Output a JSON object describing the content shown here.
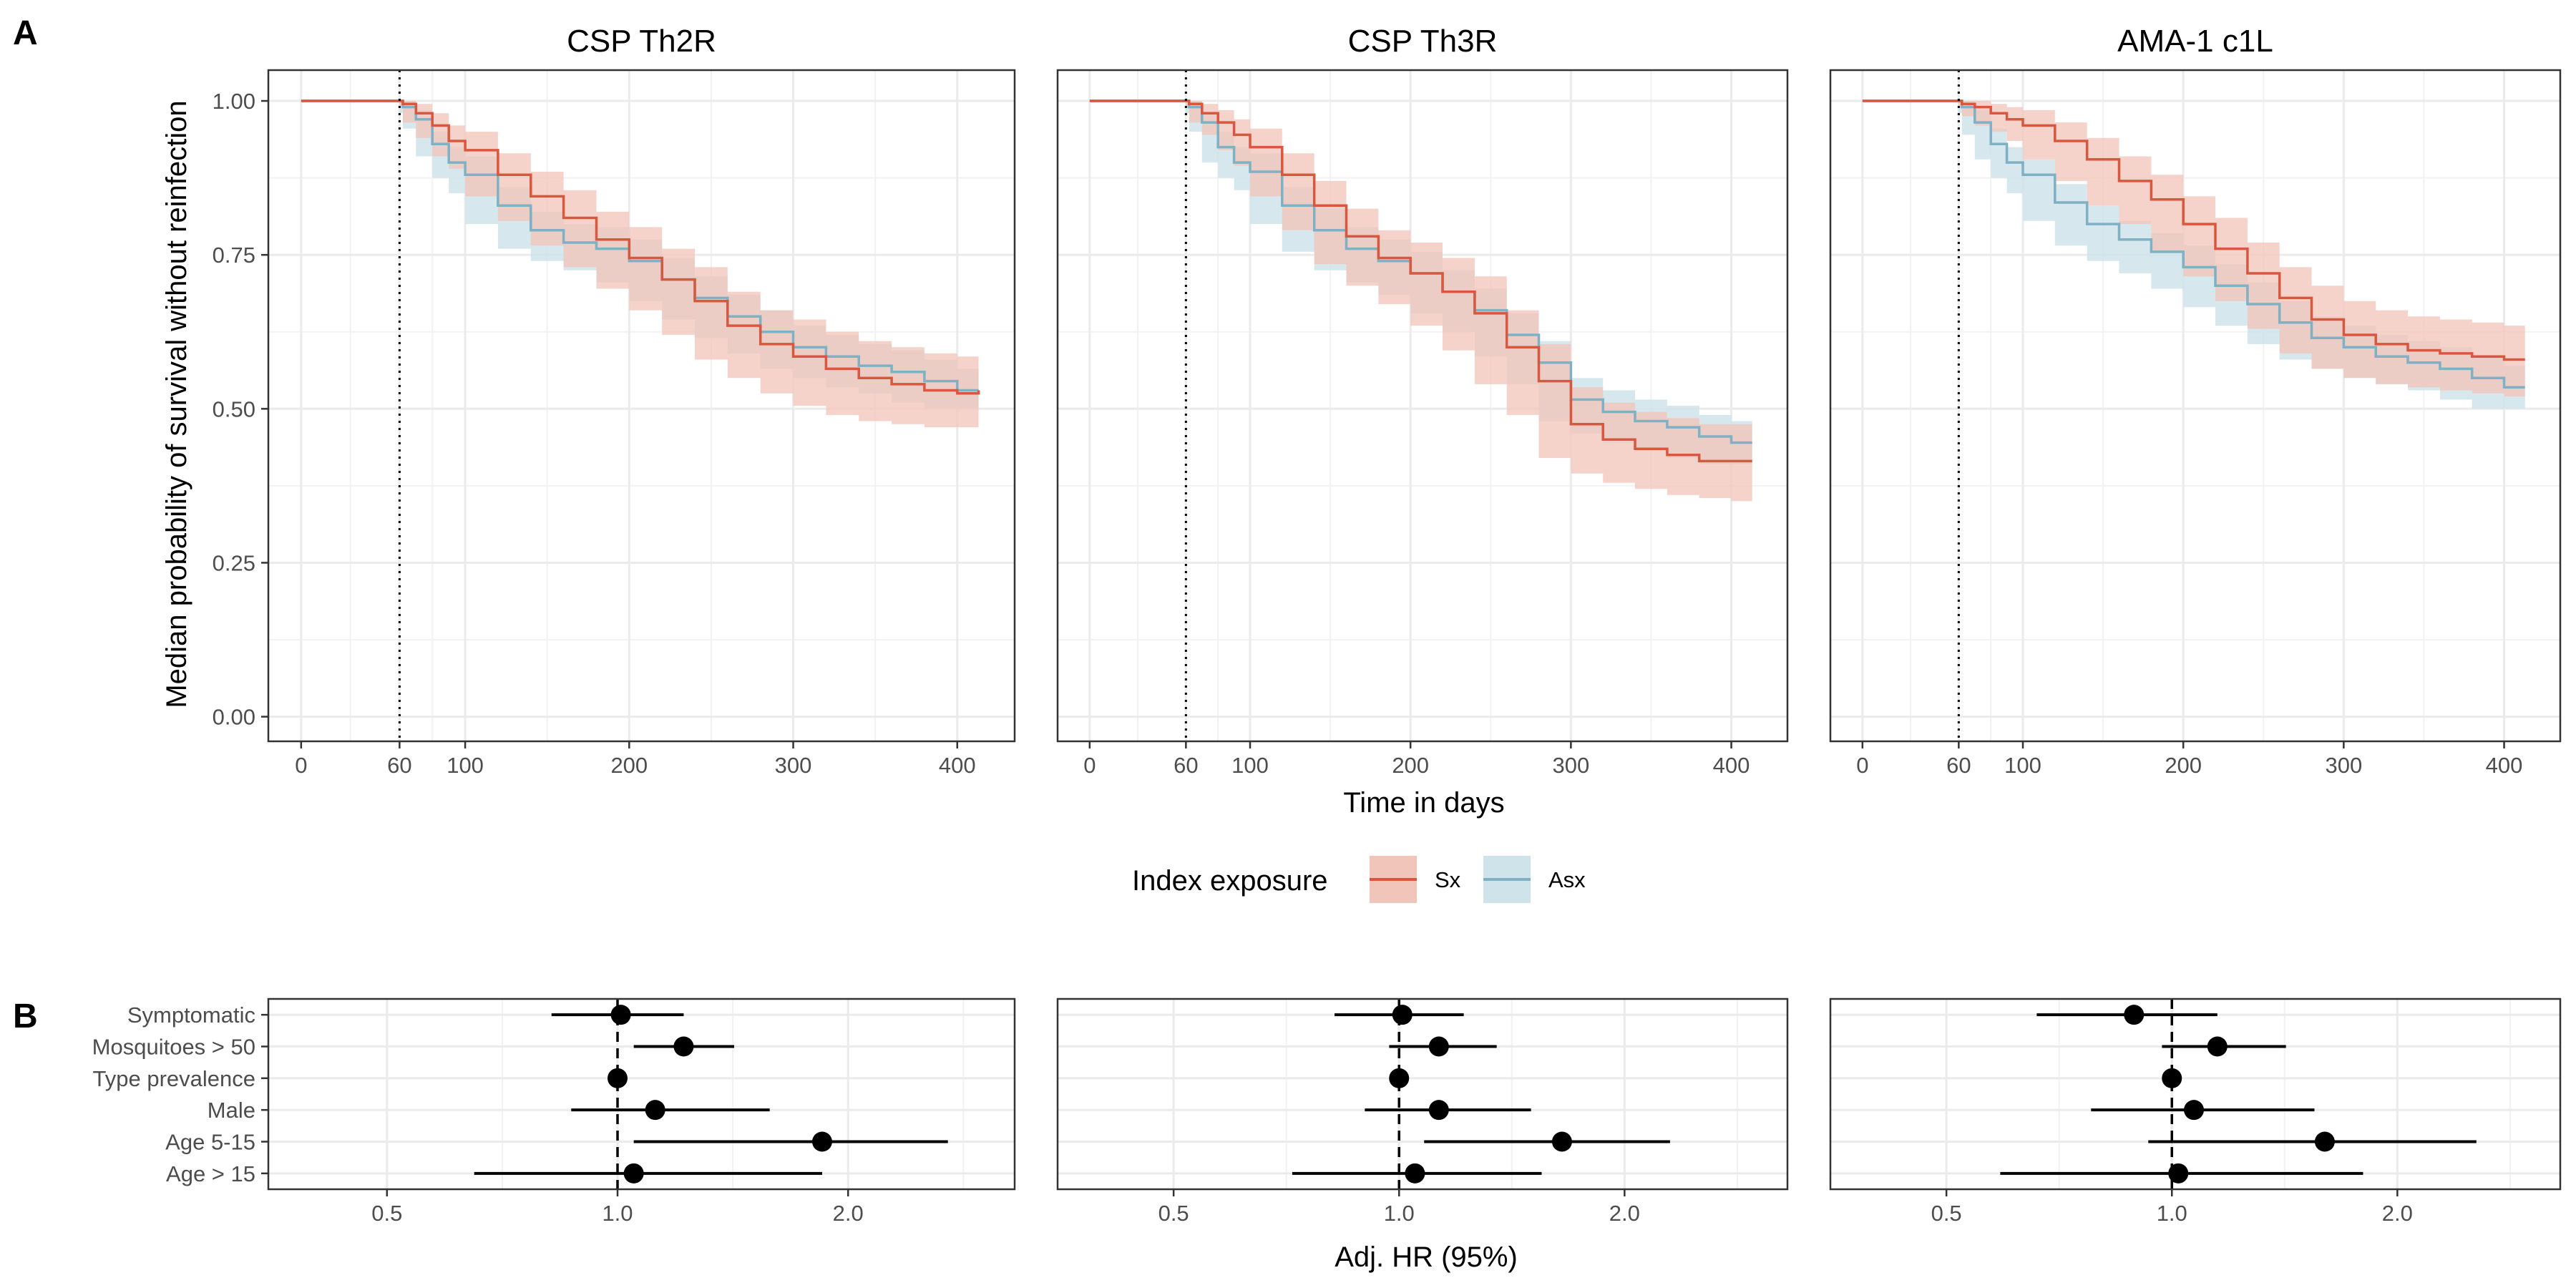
{
  "figure": {
    "panel_a_label": "A",
    "panel_b_label": "B",
    "survival_ylabel": "Median probability of survival without reinfection",
    "survival_xlabel": "Time in days",
    "forest_xlabel": "Adj. HR (95%)"
  },
  "legend": {
    "title": "Index exposure",
    "items": [
      {
        "label": "Sx",
        "line_color": "#d9573f",
        "fill_color": "#f2c5bb"
      },
      {
        "label": "Asx",
        "line_color": "#7fb0c4",
        "fill_color": "#cfe3ea"
      }
    ]
  },
  "chart_data": [
    {
      "type": "line",
      "subtype": "kaplan-meier",
      "title": "CSP Th2R",
      "xlabel": "Time in days",
      "ylabel": "Median probability of survival without reinfection",
      "xlim": [
        -20,
        435
      ],
      "ylim": [
        -0.04,
        1.05
      ],
      "x_ticks": [
        0,
        60,
        100,
        200,
        300,
        400
      ],
      "y_ticks": [
        0.0,
        0.25,
        0.5,
        0.75,
        1.0
      ],
      "y_tick_labels": [
        "0.00",
        "0.25",
        "0.50",
        "0.75",
        "1.00"
      ],
      "reference_line_x": 60,
      "grid": true,
      "series": [
        {
          "name": "Sx",
          "x": [
            0,
            60,
            62,
            70,
            80,
            90,
            100,
            120,
            140,
            160,
            180,
            200,
            220,
            240,
            260,
            280,
            300,
            320,
            340,
            360,
            380,
            400,
            413
          ],
          "y": [
            1.0,
            1.0,
            0.995,
            0.98,
            0.96,
            0.935,
            0.92,
            0.88,
            0.845,
            0.81,
            0.775,
            0.745,
            0.71,
            0.675,
            0.635,
            0.605,
            0.585,
            0.565,
            0.55,
            0.54,
            0.53,
            0.525,
            0.53
          ],
          "ci_lower": [
            1.0,
            1.0,
            0.99,
            0.965,
            0.94,
            0.91,
            0.89,
            0.845,
            0.805,
            0.765,
            0.73,
            0.695,
            0.66,
            0.62,
            0.58,
            0.55,
            0.525,
            0.505,
            0.49,
            0.48,
            0.475,
            0.47,
            0.47
          ],
          "ci_upper": [
            1.0,
            1.0,
            1.0,
            0.995,
            0.98,
            0.96,
            0.95,
            0.915,
            0.885,
            0.855,
            0.82,
            0.795,
            0.76,
            0.73,
            0.69,
            0.66,
            0.645,
            0.625,
            0.61,
            0.6,
            0.59,
            0.585,
            0.59
          ]
        },
        {
          "name": "Asx",
          "x": [
            0,
            60,
            62,
            70,
            80,
            90,
            100,
            120,
            140,
            160,
            180,
            200,
            220,
            240,
            260,
            280,
            300,
            320,
            340,
            360,
            380,
            400,
            413
          ],
          "y": [
            1.0,
            1.0,
            0.99,
            0.97,
            0.93,
            0.9,
            0.88,
            0.83,
            0.79,
            0.77,
            0.76,
            0.74,
            0.71,
            0.68,
            0.65,
            0.625,
            0.6,
            0.585,
            0.57,
            0.56,
            0.545,
            0.53,
            0.53
          ],
          "ci_lower": [
            1.0,
            1.0,
            0.98,
            0.955,
            0.91,
            0.875,
            0.85,
            0.8,
            0.76,
            0.74,
            0.725,
            0.705,
            0.675,
            0.645,
            0.615,
            0.59,
            0.565,
            0.55,
            0.535,
            0.525,
            0.51,
            0.5,
            0.5
          ],
          "ci_upper": [
            1.0,
            1.0,
            1.0,
            0.985,
            0.95,
            0.925,
            0.91,
            0.86,
            0.82,
            0.8,
            0.795,
            0.775,
            0.745,
            0.715,
            0.685,
            0.66,
            0.635,
            0.62,
            0.605,
            0.595,
            0.58,
            0.565,
            0.565
          ]
        }
      ]
    },
    {
      "type": "line",
      "subtype": "kaplan-meier",
      "title": "CSP Th3R",
      "xlabel": "Time in days",
      "ylabel": "Median probability of survival without reinfection",
      "xlim": [
        -20,
        435
      ],
      "ylim": [
        -0.04,
        1.05
      ],
      "x_ticks": [
        0,
        60,
        100,
        200,
        300,
        400
      ],
      "y_ticks": [
        0.0,
        0.25,
        0.5,
        0.75,
        1.0
      ],
      "y_tick_labels": [
        "0.00",
        "0.25",
        "0.50",
        "0.75",
        "1.00"
      ],
      "reference_line_x": 60,
      "grid": true,
      "series": [
        {
          "name": "Sx",
          "x": [
            0,
            60,
            62,
            70,
            80,
            90,
            100,
            120,
            140,
            160,
            180,
            200,
            220,
            240,
            260,
            280,
            300,
            320,
            340,
            360,
            380,
            400,
            413
          ],
          "y": [
            1.0,
            1.0,
            0.995,
            0.98,
            0.965,
            0.945,
            0.925,
            0.88,
            0.83,
            0.78,
            0.745,
            0.72,
            0.69,
            0.655,
            0.6,
            0.545,
            0.475,
            0.45,
            0.435,
            0.425,
            0.415,
            0.415,
            0.415
          ],
          "ci_lower": [
            1.0,
            1.0,
            0.99,
            0.965,
            0.945,
            0.92,
            0.895,
            0.845,
            0.79,
            0.735,
            0.7,
            0.67,
            0.635,
            0.595,
            0.54,
            0.49,
            0.42,
            0.395,
            0.38,
            0.37,
            0.36,
            0.355,
            0.35
          ],
          "ci_upper": [
            1.0,
            1.0,
            1.0,
            0.995,
            0.985,
            0.97,
            0.955,
            0.915,
            0.87,
            0.825,
            0.79,
            0.77,
            0.745,
            0.715,
            0.66,
            0.605,
            0.535,
            0.51,
            0.495,
            0.485,
            0.475,
            0.475,
            0.475
          ]
        },
        {
          "name": "Asx",
          "x": [
            0,
            60,
            62,
            70,
            80,
            90,
            100,
            120,
            140,
            160,
            180,
            200,
            220,
            240,
            260,
            280,
            300,
            320,
            340,
            360,
            380,
            400,
            413
          ],
          "y": [
            1.0,
            1.0,
            0.99,
            0.965,
            0.925,
            0.9,
            0.885,
            0.83,
            0.79,
            0.76,
            0.74,
            0.72,
            0.69,
            0.66,
            0.62,
            0.575,
            0.515,
            0.495,
            0.48,
            0.47,
            0.455,
            0.445,
            0.445
          ],
          "ci_lower": [
            1.0,
            1.0,
            0.98,
            0.95,
            0.9,
            0.875,
            0.855,
            0.8,
            0.755,
            0.725,
            0.705,
            0.685,
            0.655,
            0.625,
            0.585,
            0.54,
            0.48,
            0.46,
            0.445,
            0.435,
            0.42,
            0.41,
            0.41
          ],
          "ci_upper": [
            1.0,
            1.0,
            1.0,
            0.98,
            0.95,
            0.925,
            0.915,
            0.86,
            0.825,
            0.795,
            0.775,
            0.755,
            0.725,
            0.695,
            0.655,
            0.61,
            0.55,
            0.53,
            0.515,
            0.505,
            0.49,
            0.48,
            0.48
          ]
        }
      ]
    },
    {
      "type": "line",
      "subtype": "kaplan-meier",
      "title": "AMA-1 c1L",
      "xlabel": "Time in days",
      "ylabel": "Median probability of survival without reinfection",
      "xlim": [
        -20,
        435
      ],
      "ylim": [
        -0.04,
        1.05
      ],
      "x_ticks": [
        0,
        60,
        100,
        200,
        300,
        400
      ],
      "y_ticks": [
        0.0,
        0.25,
        0.5,
        0.75,
        1.0
      ],
      "y_tick_labels": [
        "0.00",
        "0.25",
        "0.50",
        "0.75",
        "1.00"
      ],
      "reference_line_x": 60,
      "grid": true,
      "series": [
        {
          "name": "Sx",
          "x": [
            0,
            60,
            62,
            70,
            80,
            90,
            100,
            120,
            140,
            160,
            180,
            200,
            220,
            240,
            260,
            280,
            300,
            320,
            340,
            360,
            380,
            400,
            413
          ],
          "y": [
            1.0,
            1.0,
            0.995,
            0.99,
            0.98,
            0.97,
            0.96,
            0.935,
            0.905,
            0.87,
            0.84,
            0.8,
            0.76,
            0.72,
            0.68,
            0.645,
            0.62,
            0.605,
            0.595,
            0.59,
            0.585,
            0.58,
            0.58
          ],
          "ci_lower": [
            1.0,
            1.0,
            0.99,
            0.975,
            0.96,
            0.95,
            0.935,
            0.905,
            0.87,
            0.83,
            0.8,
            0.755,
            0.715,
            0.675,
            0.63,
            0.59,
            0.565,
            0.55,
            0.54,
            0.535,
            0.53,
            0.525,
            0.52
          ],
          "ci_upper": [
            1.0,
            1.0,
            1.0,
            1.0,
            0.995,
            0.99,
            0.985,
            0.965,
            0.94,
            0.91,
            0.88,
            0.845,
            0.81,
            0.77,
            0.73,
            0.7,
            0.675,
            0.66,
            0.65,
            0.645,
            0.64,
            0.635,
            0.635
          ]
        },
        {
          "name": "Asx",
          "x": [
            0,
            60,
            62,
            70,
            80,
            90,
            100,
            120,
            140,
            160,
            180,
            200,
            220,
            240,
            260,
            280,
            300,
            320,
            340,
            360,
            380,
            400,
            413
          ],
          "y": [
            1.0,
            1.0,
            0.99,
            0.965,
            0.93,
            0.9,
            0.88,
            0.835,
            0.8,
            0.775,
            0.755,
            0.73,
            0.7,
            0.67,
            0.64,
            0.615,
            0.6,
            0.585,
            0.575,
            0.565,
            0.55,
            0.535,
            0.535
          ],
          "ci_lower": [
            1.0,
            1.0,
            0.98,
            0.945,
            0.905,
            0.875,
            0.85,
            0.805,
            0.765,
            0.74,
            0.72,
            0.695,
            0.665,
            0.635,
            0.605,
            0.58,
            0.565,
            0.55,
            0.54,
            0.53,
            0.515,
            0.5,
            0.5
          ],
          "ci_upper": [
            1.0,
            1.0,
            1.0,
            0.985,
            0.955,
            0.925,
            0.905,
            0.865,
            0.83,
            0.805,
            0.785,
            0.765,
            0.735,
            0.705,
            0.675,
            0.65,
            0.635,
            0.62,
            0.61,
            0.6,
            0.585,
            0.57,
            0.57
          ]
        }
      ]
    },
    {
      "type": "scatter",
      "subtype": "forest",
      "title": "",
      "xlabel": "Adj. HR (95%)",
      "x_scale": "log",
      "xlim": [
        0.35,
        3.3
      ],
      "x_ticks": [
        0.5,
        1.0,
        2.0
      ],
      "x_tick_labels": [
        "0.5",
        "1.0",
        "2.0"
      ],
      "reference_line_x": 1.0,
      "grid": true,
      "categories": [
        "Symptomatic",
        "Mosquitoes > 50",
        "Type prevalence",
        "Male",
        "Age 5-15",
        "Age > 15"
      ],
      "estimate": [
        1.01,
        1.22,
        1.0,
        1.12,
        1.85,
        1.05
      ],
      "ci_lower": [
        0.82,
        1.05,
        1.0,
        0.87,
        1.05,
        0.65
      ],
      "ci_upper": [
        1.22,
        1.42,
        1.0,
        1.58,
        2.7,
        1.85
      ]
    },
    {
      "type": "scatter",
      "subtype": "forest",
      "title": "",
      "xlabel": "Adj. HR (95%)",
      "x_scale": "log",
      "xlim": [
        0.35,
        3.3
      ],
      "x_ticks": [
        0.5,
        1.0,
        2.0
      ],
      "x_tick_labels": [
        "0.5",
        "1.0",
        "2.0"
      ],
      "reference_line_x": 1.0,
      "grid": true,
      "categories": [
        "Symptomatic",
        "Mosquitoes > 50",
        "Type prevalence",
        "Male",
        "Age 5-15",
        "Age > 15"
      ],
      "estimate": [
        1.01,
        1.13,
        1.0,
        1.13,
        1.65,
        1.05
      ],
      "ci_lower": [
        0.82,
        0.97,
        1.0,
        0.9,
        1.08,
        0.72
      ],
      "ci_upper": [
        1.22,
        1.35,
        1.0,
        1.5,
        2.3,
        1.55
      ]
    },
    {
      "type": "scatter",
      "subtype": "forest",
      "title": "",
      "xlabel": "Adj. HR (95%)",
      "x_scale": "log",
      "xlim": [
        0.35,
        3.3
      ],
      "x_ticks": [
        0.5,
        1.0,
        2.0
      ],
      "x_tick_labels": [
        "0.5",
        "1.0",
        "2.0"
      ],
      "reference_line_x": 1.0,
      "grid": true,
      "categories": [
        "Symptomatic",
        "Mosquitoes > 50",
        "Type prevalence",
        "Male",
        "Age 5-15",
        "Age > 15"
      ],
      "estimate": [
        0.89,
        1.15,
        1.0,
        1.07,
        1.6,
        1.02
      ],
      "ci_lower": [
        0.66,
        0.97,
        1.0,
        0.78,
        0.93,
        0.59
      ],
      "ci_upper": [
        1.15,
        1.42,
        1.0,
        1.55,
        2.55,
        1.8
      ]
    }
  ]
}
